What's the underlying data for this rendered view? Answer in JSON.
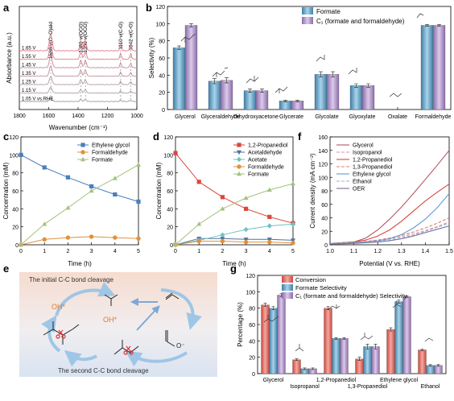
{
  "panels": {
    "a": "a",
    "b": "b",
    "c": "c",
    "d": "d",
    "e": "e",
    "f": "f",
    "g": "g"
  },
  "chart_data": [
    {
      "id": "a",
      "type": "line",
      "xlabel": "Wavenumber (cm⁻¹)",
      "ylabel": "Absorbance (a.u.)",
      "xlim": [
        1800,
        1000
      ],
      "xticks": [
        1800,
        1600,
        1400,
        1200,
        1000
      ],
      "traces": [
        "1.05 V vs.RHE",
        "1.15 V",
        "1.25 V",
        "1.35 V",
        "1.45 V",
        "1.55 V",
        "1.65 V"
      ],
      "bands": [
        {
          "pos": 1586,
          "label": "1586 ν(C=O)ald"
        },
        {
          "pos": 1381,
          "label": "1381 ν(OCO)"
        },
        {
          "pos": 1350,
          "label": "1350 ν(OCO)"
        },
        {
          "pos": 1110,
          "label": "1110 ν(C-O)"
        },
        {
          "pos": 1042,
          "label": "1042 ν(C-O)"
        }
      ]
    },
    {
      "id": "b",
      "type": "bar",
      "ylabel": "Selectivity (%)",
      "ylim": [
        0,
        120
      ],
      "yticks": [
        0,
        20,
        40,
        60,
        80,
        100,
        120
      ],
      "categories": [
        "Glycerol",
        "Glyceraldehyde",
        "Dihydroxyacetone",
        "Glycerate",
        "Glycolate",
        "Glyoxylate",
        "Oxalate",
        "Formaldehyde"
      ],
      "series": [
        {
          "name": "Formate",
          "values": [
            72,
            33,
            22,
            10,
            41,
            28,
            0,
            98
          ],
          "errors": [
            2,
            3,
            2,
            1,
            3,
            2,
            0,
            1
          ]
        },
        {
          "name": "C₁ (formate and formaldehyde)",
          "values": [
            98,
            34,
            22,
            10,
            41,
            28,
            0,
            98
          ],
          "errors": [
            2,
            3,
            2,
            1,
            3,
            2,
            0,
            1
          ]
        }
      ]
    },
    {
      "id": "c",
      "type": "line",
      "xlabel": "Time (h)",
      "ylabel": "Concentration (mM)",
      "xlim": [
        0,
        5
      ],
      "ylim": [
        0,
        120
      ],
      "yticks": [
        0,
        20,
        40,
        60,
        80,
        100,
        120
      ],
      "x": [
        0,
        1,
        2,
        3,
        4,
        5
      ],
      "series": [
        {
          "name": "Ethylene glycol",
          "values": [
            100,
            86,
            75,
            65,
            56,
            48
          ],
          "color": "#4a7fbf",
          "marker": "square"
        },
        {
          "name": "Formaldehyde",
          "values": [
            0,
            6,
            8,
            9,
            8,
            7
          ],
          "color": "#e0913b",
          "marker": "circle"
        },
        {
          "name": "Formate",
          "values": [
            0,
            23,
            41,
            60,
            74,
            89
          ],
          "color": "#a4c27e",
          "marker": "triangle"
        }
      ]
    },
    {
      "id": "d",
      "type": "line",
      "xlabel": "Time (h)",
      "ylabel": "Concentration (mM)",
      "xlim": [
        0,
        5
      ],
      "ylim": [
        0,
        120
      ],
      "yticks": [
        0,
        20,
        40,
        60,
        80,
        100,
        120
      ],
      "x": [
        0,
        1,
        2,
        3,
        4,
        5
      ],
      "series": [
        {
          "name": "1,2-Propanediol",
          "values": [
            102,
            70,
            53,
            40,
            31,
            24
          ],
          "color": "#d9473d",
          "marker": "square"
        },
        {
          "name": "Acetaldehyde",
          "values": [
            0,
            7,
            7,
            6,
            6,
            5
          ],
          "color": "#53709b",
          "marker": "tri-down"
        },
        {
          "name": "Acetate",
          "values": [
            0,
            5,
            11,
            17,
            21,
            23
          ],
          "color": "#6cc3c3",
          "marker": "diamond"
        },
        {
          "name": "Formaldehyde",
          "values": [
            0,
            4,
            4,
            3,
            3,
            2
          ],
          "color": "#e0913b",
          "marker": "circle"
        },
        {
          "name": "Formate",
          "values": [
            0,
            23,
            40,
            52,
            61,
            68
          ],
          "color": "#a4c27e",
          "marker": "triangle"
        }
      ]
    },
    {
      "id": "f",
      "type": "line",
      "xlabel": "Potential (V vs. RHE)",
      "ylabel": "Current density (mA cm⁻²)",
      "xlim": [
        1.0,
        1.5
      ],
      "ylim": [
        0,
        160
      ],
      "xticks": [
        1.0,
        1.1,
        1.2,
        1.3,
        1.4,
        1.5
      ],
      "yticks": [
        0,
        20,
        40,
        60,
        80,
        100,
        120,
        140,
        160
      ],
      "series": [
        {
          "name": "Glycerol",
          "color": "#b25563",
          "dash": false,
          "x": [
            1.0,
            1.1,
            1.15,
            1.2,
            1.25,
            1.3,
            1.35,
            1.4,
            1.45,
            1.5
          ],
          "values": [
            2,
            4,
            10,
            22,
            38,
            56,
            76,
            97,
            118,
            140
          ]
        },
        {
          "name": "Isopropanol",
          "color": "#d79aa3",
          "dash": true,
          "x": [
            1.0,
            1.1,
            1.2,
            1.25,
            1.3,
            1.35,
            1.4,
            1.45,
            1.5
          ],
          "values": [
            2,
            3,
            6,
            9,
            12,
            16,
            21,
            27,
            34
          ]
        },
        {
          "name": "1,2-Propanediol",
          "color": "#d9473d",
          "dash": false,
          "x": [
            1.0,
            1.1,
            1.15,
            1.2,
            1.25,
            1.3,
            1.35,
            1.4,
            1.45,
            1.5
          ],
          "values": [
            2,
            4,
            7,
            13,
            22,
            35,
            50,
            65,
            78,
            90
          ]
        },
        {
          "name": "1,3-Propanediol",
          "color": "#e07b73",
          "dash": true,
          "x": [
            1.0,
            1.1,
            1.2,
            1.25,
            1.3,
            1.35,
            1.4,
            1.45,
            1.5
          ],
          "values": [
            2,
            3,
            7,
            10,
            14,
            19,
            25,
            32,
            40
          ]
        },
        {
          "name": "Ethylene glycol",
          "color": "#5f9bd6",
          "dash": false,
          "x": [
            1.0,
            1.1,
            1.2,
            1.25,
            1.3,
            1.35,
            1.4,
            1.45,
            1.5
          ],
          "values": [
            2,
            3,
            6,
            9,
            15,
            25,
            38,
            55,
            76
          ]
        },
        {
          "name": "Ethanol",
          "color": "#8fb3d6",
          "dash": true,
          "x": [
            1.0,
            1.1,
            1.2,
            1.25,
            1.3,
            1.35,
            1.4,
            1.45,
            1.5
          ],
          "values": [
            2,
            3,
            5,
            7,
            10,
            14,
            20,
            26,
            32
          ]
        },
        {
          "name": "OER",
          "color": "#7a6f9b",
          "dash": false,
          "x": [
            1.0,
            1.1,
            1.2,
            1.25,
            1.3,
            1.35,
            1.4,
            1.45,
            1.5
          ],
          "values": [
            1,
            2,
            4,
            6,
            9,
            13,
            18,
            23,
            28
          ]
        }
      ]
    },
    {
      "id": "g",
      "type": "bar",
      "ylabel": "Percentage (%)",
      "ylim": [
        0,
        120
      ],
      "yticks": [
        0,
        20,
        40,
        60,
        80,
        100,
        120
      ],
      "categories": [
        "Glycerol",
        "Isopropanol",
        "1,2-Propanediol",
        "1,3-Propanediol",
        "Ethylene glycol",
        "Ethanol"
      ],
      "series": [
        {
          "name": "Conversion",
          "values": [
            84,
            17,
            80,
            18,
            54,
            29
          ],
          "errors": [
            2,
            1,
            2,
            2,
            2,
            1
          ]
        },
        {
          "name": "Formate Selectivity",
          "values": [
            80,
            6,
            43,
            33,
            88,
            10
          ],
          "errors": [
            2,
            1,
            1,
            3,
            2,
            1
          ]
        },
        {
          "name": "C₁ (formate and formaldehyde) Selectivity",
          "values": [
            96,
            6,
            43,
            33,
            94,
            10
          ],
          "errors": [
            2,
            1,
            1,
            3,
            1,
            1
          ]
        }
      ]
    }
  ],
  "scheme": {
    "title_top": "The initial C-C bond cleavage",
    "title_bottom": "The second C-C bond cleavage",
    "oh1": "OH*",
    "oh2": "OH*",
    "charge": "O⁻"
  }
}
